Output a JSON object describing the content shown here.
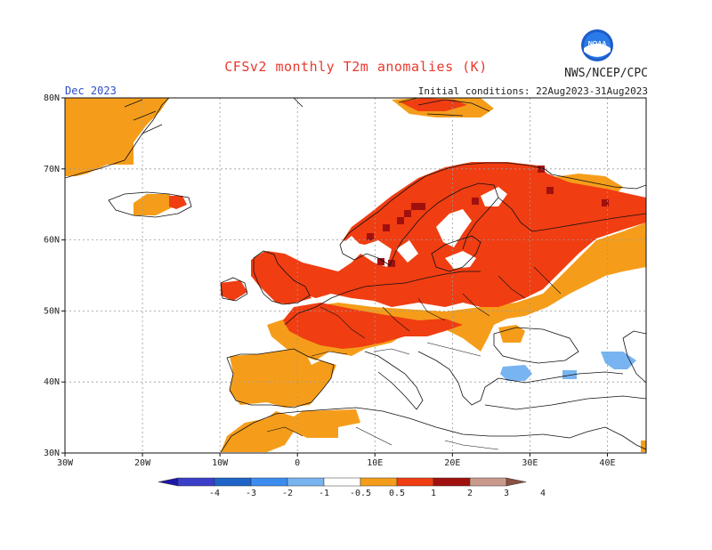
{
  "header": {
    "title": "CFSv2 monthly T2m anomalies (K)",
    "agency": "NWS/NCEP/CPC",
    "logo_text": "NOAA",
    "month": "Dec 2023",
    "initial_conditions": "Initial conditions: 22Aug2023-31Aug2023"
  },
  "axes": {
    "lat_labels": [
      "80N",
      "70N",
      "60N",
      "50N",
      "40N",
      "30N"
    ],
    "lon_labels": [
      "30W",
      "20W",
      "10W",
      "0",
      "10E",
      "20E",
      "30E",
      "40E"
    ]
  },
  "colorbar": {
    "labels": [
      "-4",
      "-3",
      "-2",
      "-1",
      "-0.5",
      "0.5",
      "1",
      "2",
      "3",
      "4"
    ],
    "colors": [
      "#1e18a8",
      "#3a3ec8",
      "#1e64c8",
      "#3c8cf0",
      "#78b4f0",
      "#ffffff",
      "#f59d1a",
      "#f03d12",
      "#a0100f",
      "#c99a8c",
      "#8a5040"
    ]
  },
  "palette": {
    "orange": "#f59d1a",
    "red": "#f03d12",
    "darkred": "#a0100f",
    "lightblue": "#78b4f0"
  }
}
